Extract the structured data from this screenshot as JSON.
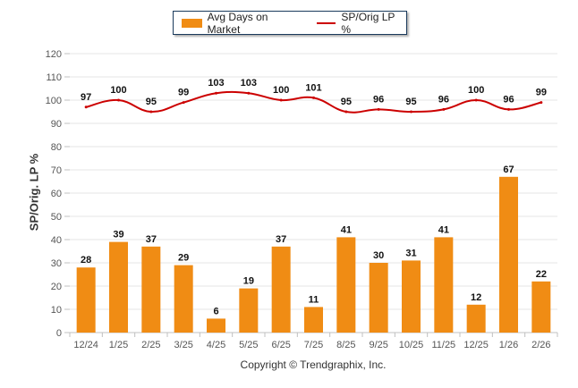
{
  "chart_data": {
    "type": "bar",
    "title": "",
    "xlabel": "",
    "ylabel": "SP/Orig. LP %",
    "ylim": [
      0,
      120
    ],
    "yticks": [
      0,
      10,
      20,
      30,
      40,
      50,
      60,
      70,
      80,
      90,
      100,
      110,
      120
    ],
    "grid": true,
    "legend_position": "top-center",
    "categories": [
      "12/24",
      "1/25",
      "2/25",
      "3/25",
      "4/25",
      "5/25",
      "6/25",
      "7/25",
      "8/25",
      "9/25",
      "10/25",
      "11/25",
      "12/25",
      "1/26",
      "2/26"
    ],
    "series": [
      {
        "name": "Avg Days on Market",
        "type": "bar",
        "color": "#f08c14",
        "values": [
          28,
          39,
          37,
          29,
          6,
          19,
          37,
          11,
          41,
          30,
          31,
          41,
          12,
          67,
          22
        ]
      },
      {
        "name": "SP/Orig LP %",
        "type": "line",
        "color": "#cc0000",
        "values": [
          97,
          100,
          95,
          99,
          103,
          103,
          100,
          101,
          95,
          96,
          95,
          96,
          100,
          96,
          99
        ]
      }
    ]
  },
  "legend": {
    "bar_label": "Avg Days on Market",
    "line_label": "SP/Orig LP %"
  },
  "footer": {
    "copyright": "Copyright © Trendgraphix, Inc."
  }
}
